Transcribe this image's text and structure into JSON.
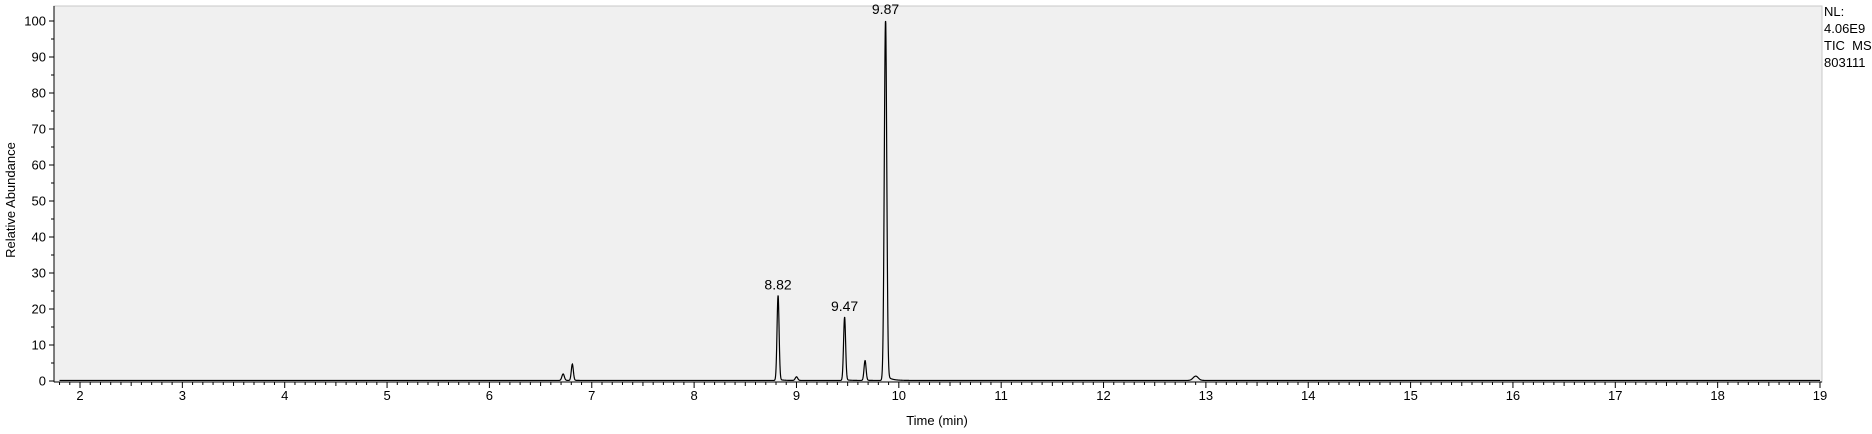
{
  "chart_data": {
    "type": "line",
    "xlabel": "Time (min)",
    "ylabel": "Relative Abundance",
    "xlim": [
      1.8,
      19.0
    ],
    "ylim": [
      0,
      100
    ],
    "x_ticks": [
      2,
      3,
      4,
      5,
      6,
      7,
      8,
      9,
      10,
      11,
      12,
      13,
      14,
      15,
      16,
      17,
      18,
      19
    ],
    "y_ticks": [
      0,
      10,
      20,
      30,
      40,
      50,
      60,
      70,
      80,
      90,
      100
    ],
    "grid": false,
    "colors": {
      "plot_background": "#f0f0f0",
      "trace": "#000000",
      "axis": "#000000"
    },
    "peaks": [
      {
        "rt": 6.72,
        "height": 1.8,
        "width": 0.012
      },
      {
        "rt": 6.81,
        "height": 4.5,
        "width": 0.01
      },
      {
        "rt": 8.82,
        "height": 23.5,
        "width": 0.01
      },
      {
        "rt": 9.0,
        "height": 1.0,
        "width": 0.012
      },
      {
        "rt": 9.47,
        "height": 17.5,
        "width": 0.01
      },
      {
        "rt": 9.67,
        "height": 5.5,
        "width": 0.01
      },
      {
        "rt": 9.87,
        "height": 100,
        "width": 0.012
      },
      {
        "rt": 12.9,
        "height": 1.2,
        "width": 0.025
      }
    ],
    "peak_labels": [
      {
        "rt": 8.82,
        "text": "8.82"
      },
      {
        "rt": 9.47,
        "text": "9.47"
      },
      {
        "rt": 9.87,
        "text": "9.87"
      }
    ]
  },
  "info": {
    "nl_label": "NL:",
    "nl_value": "4.06E9",
    "trace_type": "TIC  MS",
    "sample_id": "803111"
  }
}
